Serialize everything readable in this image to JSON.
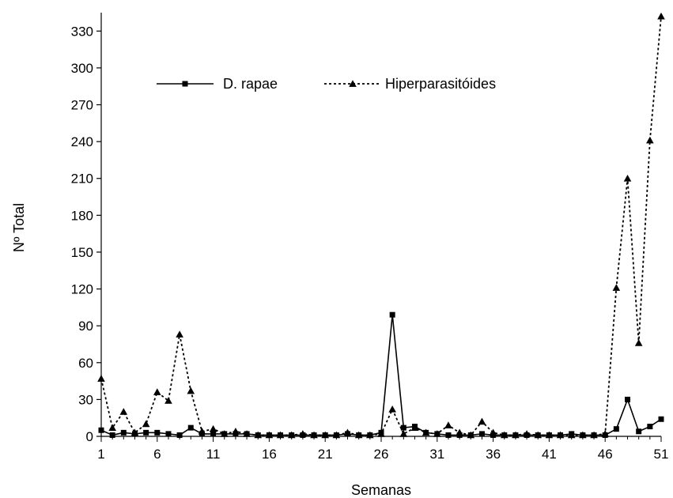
{
  "chart_data": {
    "type": "line",
    "xlabel": "Semanas",
    "ylabel": "Nº Total",
    "xlim": [
      1,
      51
    ],
    "ylim": [
      0,
      345
    ],
    "x_ticks": [
      1,
      6,
      11,
      16,
      21,
      26,
      31,
      36,
      41,
      46,
      51
    ],
    "y_ticks": [
      0,
      30,
      60,
      90,
      120,
      150,
      180,
      210,
      240,
      270,
      300,
      330
    ],
    "grid": false,
    "legend_position": "top-left",
    "x": [
      1,
      2,
      3,
      4,
      5,
      6,
      7,
      8,
      9,
      10,
      11,
      12,
      13,
      14,
      15,
      16,
      17,
      18,
      19,
      20,
      21,
      22,
      23,
      24,
      25,
      26,
      27,
      28,
      29,
      30,
      31,
      32,
      33,
      34,
      35,
      36,
      37,
      38,
      39,
      40,
      41,
      42,
      43,
      44,
      45,
      46,
      47,
      48,
      49,
      50,
      51
    ],
    "series": [
      {
        "name": "D. rapae",
        "style": "solid",
        "marker": "square",
        "color": "#000000",
        "values": [
          5,
          1,
          3,
          2,
          3,
          3,
          2,
          1,
          7,
          2,
          2,
          2,
          2,
          2,
          1,
          1,
          1,
          1,
          1,
          1,
          1,
          1,
          2,
          1,
          1,
          3,
          99,
          7,
          8,
          3,
          2,
          1,
          1,
          1,
          2,
          1,
          1,
          1,
          1,
          1,
          1,
          1,
          2,
          1,
          1,
          1,
          6,
          30,
          4,
          8,
          14
        ]
      },
      {
        "name": "Hiperparasitóides",
        "style": "dotted",
        "marker": "triangle",
        "color": "#000000",
        "values": [
          47,
          7,
          20,
          3,
          10,
          36,
          29,
          83,
          37,
          4,
          6,
          2,
          4,
          2,
          1,
          1,
          1,
          1,
          2,
          1,
          1,
          1,
          3,
          1,
          1,
          2,
          22,
          2,
          7,
          3,
          2,
          9,
          3,
          1,
          12,
          3,
          1,
          1,
          2,
          1,
          1,
          1,
          1,
          1,
          1,
          2,
          121,
          210,
          76,
          241,
          342
        ]
      }
    ]
  }
}
